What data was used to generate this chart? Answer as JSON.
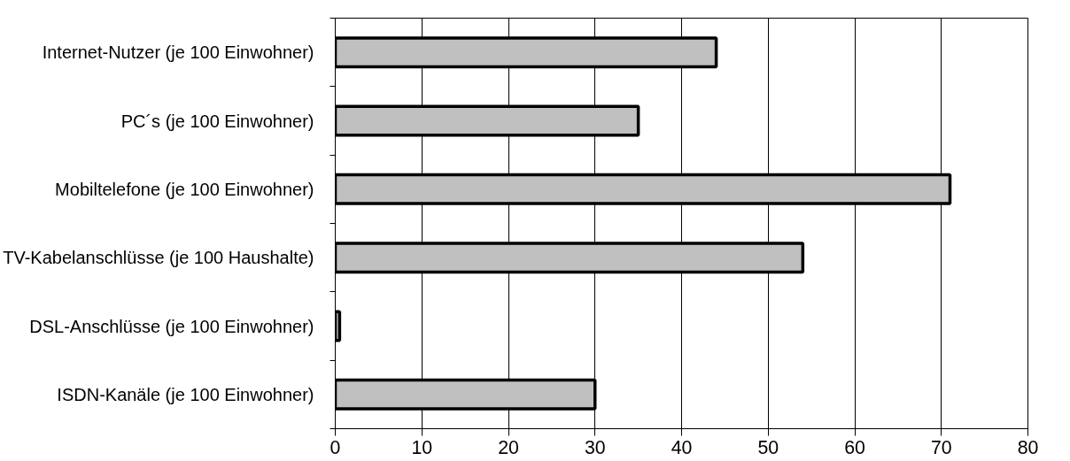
{
  "chart_data": {
    "type": "bar",
    "orientation": "horizontal",
    "categories": [
      "Internet-Nutzer (je 100 Einwohner)",
      "PC´s (je 100 Einwohner)",
      "Mobiltelefone (je 100 Einwohner)",
      "TV-Kabelanschlüsse (je 100 Haushalte)",
      "DSL-Anschlüsse (je 100 Einwohner)",
      "ISDN-Kanäle (je 100 Einwohner)"
    ],
    "values": [
      44,
      35,
      71,
      54,
      0.5,
      30
    ],
    "color": "#c0c0c0",
    "xlim": [
      0,
      80
    ],
    "xticks": [
      0,
      10,
      20,
      30,
      40,
      50,
      60,
      70,
      80
    ],
    "grid": "x"
  }
}
